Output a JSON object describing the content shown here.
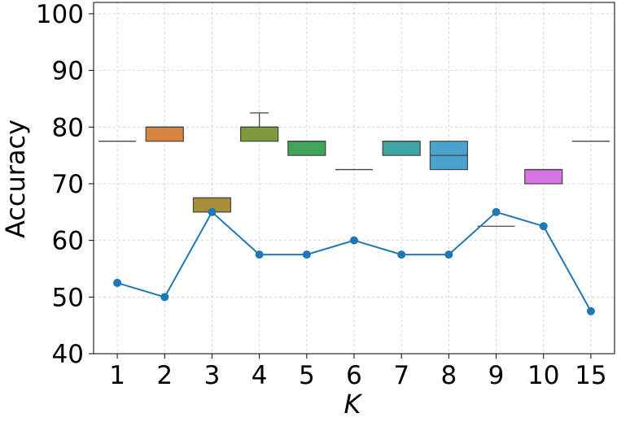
{
  "chart_data": {
    "type": "box",
    "xlabel": "K",
    "ylabel": "Accuracy",
    "ylim": [
      40,
      102
    ],
    "yticks": [
      40,
      50,
      60,
      70,
      80,
      90,
      100
    ],
    "grid": true,
    "categories": [
      "1",
      "2",
      "3",
      "4",
      "5",
      "6",
      "7",
      "8",
      "9",
      "10",
      "15"
    ],
    "boxes": [
      {
        "category": "1",
        "whisker_low": 77.5,
        "q1": 77.5,
        "median": 77.5,
        "q3": 77.5,
        "whisker_high": 77.5,
        "color": "#c0c4c8"
      },
      {
        "category": "2",
        "whisker_low": 77.5,
        "q1": 77.5,
        "median": 80,
        "q3": 80,
        "whisker_high": 80,
        "color": "#d6843e"
      },
      {
        "category": "3",
        "whisker_low": 65,
        "q1": 65,
        "median": 67.5,
        "q3": 67.5,
        "whisker_high": 67.5,
        "color": "#a88e3a"
      },
      {
        "category": "4",
        "whisker_low": 77.5,
        "q1": 77.5,
        "median": 80,
        "q3": 80,
        "whisker_high": 82.5,
        "color": "#7e9a3a"
      },
      {
        "category": "5",
        "whisker_low": 75,
        "q1": 75,
        "median": 77.5,
        "q3": 77.5,
        "whisker_high": 77.5,
        "color": "#3fa55a"
      },
      {
        "category": "6",
        "whisker_low": 72.5,
        "q1": 72.5,
        "median": 72.5,
        "q3": 72.5,
        "whisker_high": 72.5,
        "color": "#3fa68a"
      },
      {
        "category": "7",
        "whisker_low": 75,
        "q1": 75,
        "median": 77.5,
        "q3": 77.5,
        "whisker_high": 77.5,
        "color": "#3ea4a4"
      },
      {
        "category": "8",
        "whisker_low": 72.5,
        "q1": 72.5,
        "median": 75,
        "q3": 77.5,
        "whisker_high": 77.5,
        "color": "#4aa3cf"
      },
      {
        "category": "9",
        "whisker_low": 62.5,
        "q1": 62.5,
        "median": 62.5,
        "q3": 62.5,
        "whisker_high": 62.5,
        "color": "#8aa0d8"
      },
      {
        "category": "10",
        "whisker_low": 70,
        "q1": 70,
        "median": 72.5,
        "q3": 72.5,
        "whisker_high": 72.5,
        "color": "#d873e6"
      },
      {
        "category": "15",
        "whisker_low": 77.5,
        "q1": 77.5,
        "median": 77.5,
        "q3": 77.5,
        "whisker_high": 77.5,
        "color": "#e07ab0"
      }
    ],
    "line": {
      "color": "#1f77b4",
      "values": [
        52.5,
        50,
        65,
        57.5,
        57.5,
        60,
        57.5,
        57.5,
        65,
        62.5,
        47.5
      ]
    }
  }
}
